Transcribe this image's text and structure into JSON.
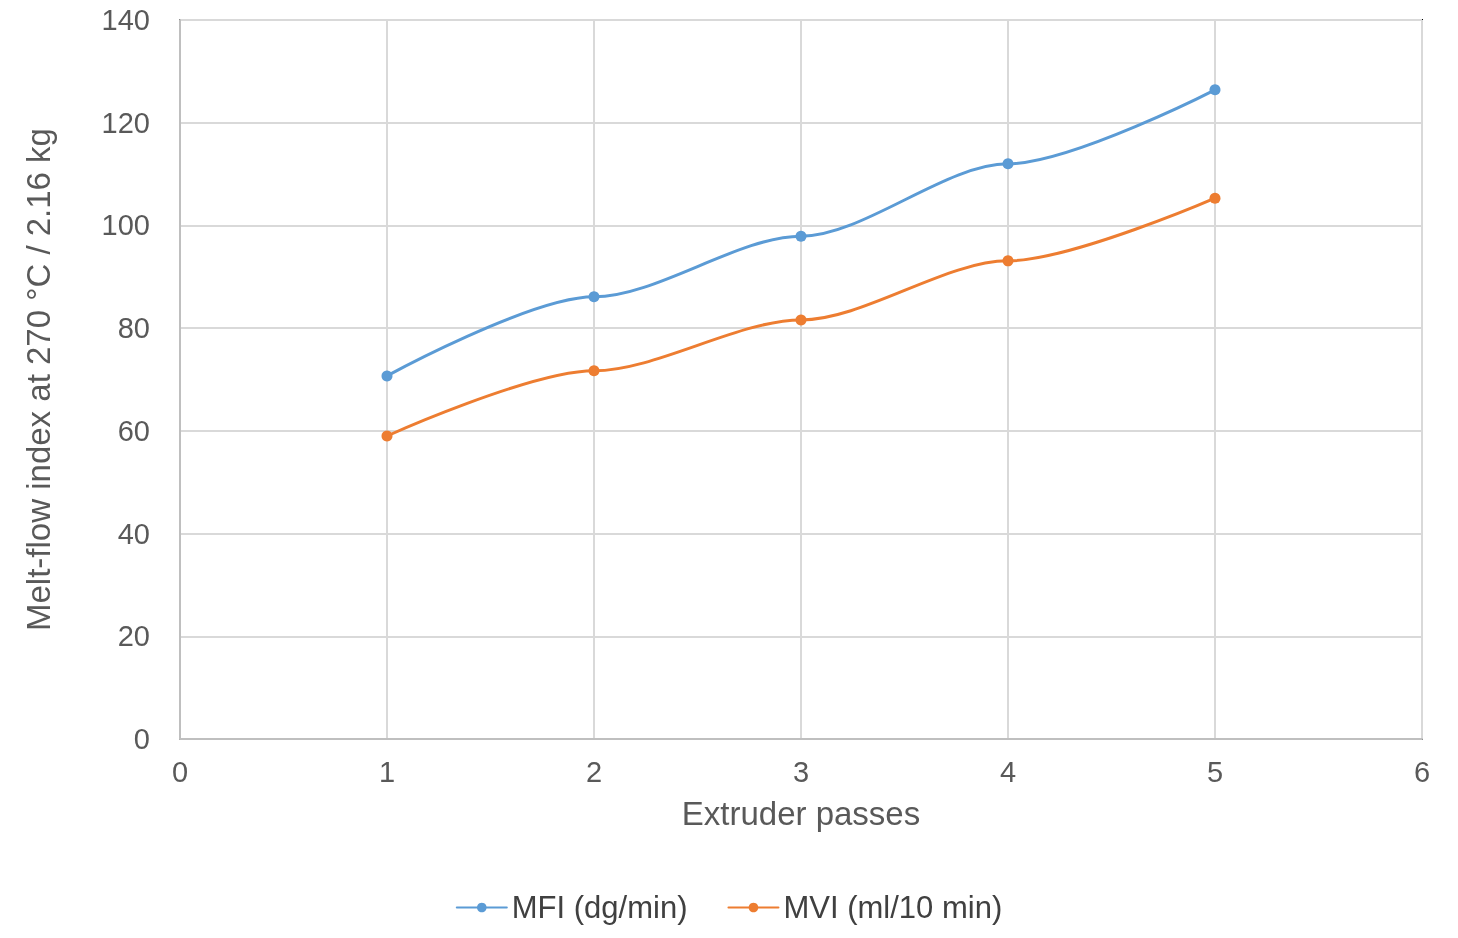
{
  "chart_data": {
    "type": "line",
    "xlabel": "Extruder passes",
    "ylabel": "Melt-flow index at 270 °C / 2.16 kg",
    "x": [
      1,
      2,
      3,
      4,
      5
    ],
    "series": [
      {
        "name": "MFI (dg/min)",
        "color": "#5b9bd5",
        "values": [
          70.7,
          86.1,
          97.9,
          112.0,
          126.4
        ]
      },
      {
        "name": "MVI (ml/10 min)",
        "color": "#ed7d31",
        "values": [
          59.0,
          71.7,
          81.6,
          93.1,
          105.3
        ]
      }
    ],
    "xlim": [
      0,
      6
    ],
    "xticks": [
      0,
      1,
      2,
      3,
      4,
      5,
      6
    ],
    "ylim": [
      0,
      140
    ],
    "yticks": [
      0,
      20,
      40,
      60,
      80,
      100,
      120,
      140
    ],
    "grid": true,
    "legend": "bottom",
    "marker": "circle",
    "line_style": "solid"
  }
}
